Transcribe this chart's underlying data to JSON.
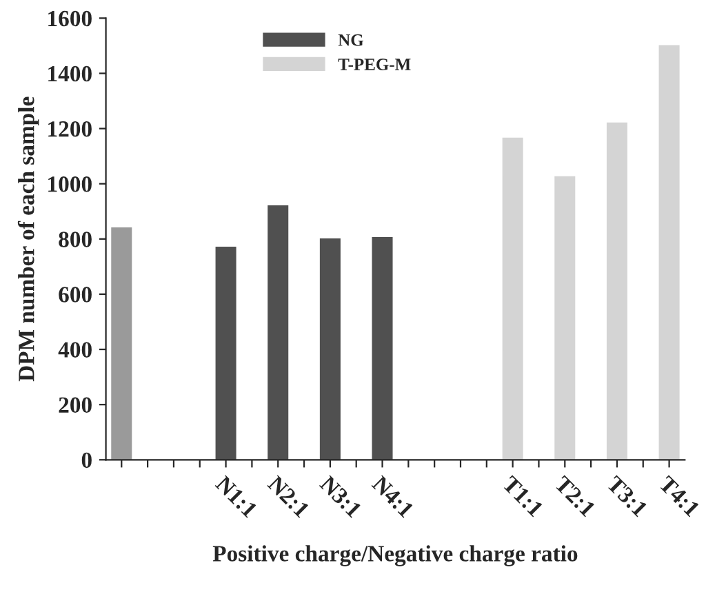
{
  "chart_data": {
    "type": "bar",
    "xlabel": "Positive charge/Negative charge ratio",
    "ylabel": "DPM number of each sample",
    "categories": [
      null,
      null,
      null,
      null,
      "N1:1",
      null,
      "N2:1",
      null,
      "N3:1",
      null,
      "N4:1",
      null,
      null,
      null,
      null,
      "T1:1",
      null,
      "T2:1",
      null,
      "T3:1",
      null,
      "T4:1"
    ],
    "series": [
      {
        "color": "#9a9a9a",
        "values": [
          840,
          null,
          null,
          null,
          null,
          null,
          null,
          null,
          null,
          null,
          null,
          null,
          null,
          null,
          null,
          null,
          null,
          null,
          null,
          null,
          null,
          null
        ]
      },
      {
        "name": "NG",
        "color": "#505050",
        "values": [
          null,
          null,
          null,
          null,
          770,
          null,
          920,
          null,
          800,
          null,
          805,
          null,
          null,
          null,
          null,
          null,
          null,
          null,
          null,
          null,
          null,
          null
        ]
      },
      {
        "name": "T-PEG-M",
        "color": "#d4d4d4",
        "values": [
          null,
          null,
          null,
          null,
          null,
          null,
          null,
          null,
          null,
          null,
          null,
          null,
          null,
          null,
          null,
          1165,
          null,
          1025,
          null,
          1220,
          null,
          1500
        ]
      }
    ],
    "ylim": [
      0,
      1600
    ],
    "yticks": [
      0,
      200,
      400,
      600,
      800,
      1000,
      1200,
      1400,
      1600
    ],
    "grid": false,
    "legend": "top"
  }
}
